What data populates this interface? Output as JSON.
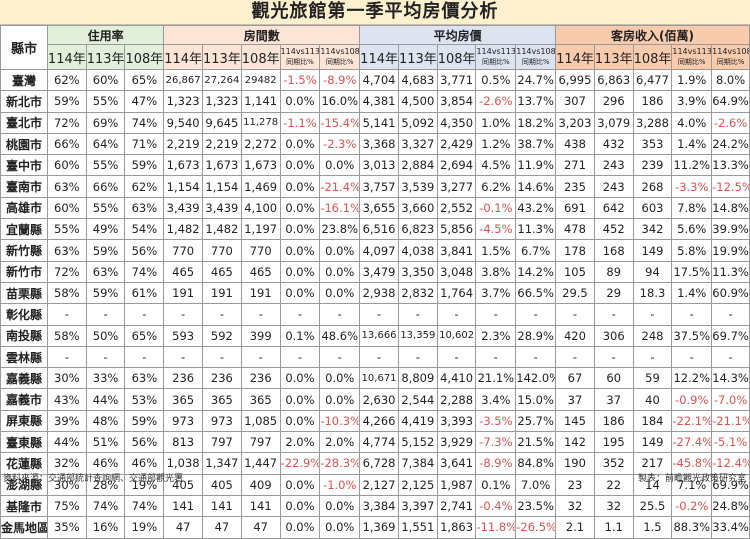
{
  "title": "觀光旅館第一季平均房價分析",
  "header": {
    "city_label": "縣市",
    "groups": [
      {
        "label": "住用率",
        "color": "#e2efda",
        "subs": [
          "114年",
          "113年",
          "108年"
        ]
      },
      {
        "label": "房間數",
        "color": "#fce4d6",
        "subs": [
          "114年",
          "113年",
          "108年",
          "114vs113\n同期比%",
          "114vs108\n同期比%"
        ]
      },
      {
        "label": "平均房價",
        "color": "#dde3f1",
        "subs": [
          "114年",
          "113年",
          "108年",
          "114vs113\n同期比%",
          "114vs108\n同期比%"
        ]
      },
      {
        "label": "客房收入(佰萬)",
        "color": "#f8cbad",
        "subs": [
          "114年",
          "113年",
          "108年",
          "114vs113\n同期比%",
          "114vs108\n同期比%"
        ]
      }
    ]
  },
  "rows": [
    {
      "city": "臺灣",
      "cells": [
        "62%",
        "60%",
        "65%",
        "26,867",
        "27,264",
        "29482",
        "-1.5%",
        "-8.9%",
        "4,704",
        "4,683",
        "3,771",
        "0.5%",
        "24.7%",
        "6,995",
        "6,863",
        "6,477",
        "1.9%",
        "8.0%"
      ]
    },
    {
      "city": "新北市",
      "cells": [
        "59%",
        "55%",
        "47%",
        "1,323",
        "1,323",
        "1,141",
        "0.0%",
        "16.0%",
        "4,381",
        "4,500",
        "3,854",
        "-2.6%",
        "13.7%",
        "307",
        "296",
        "186",
        "3.9%",
        "64.9%"
      ]
    },
    {
      "city": "臺北市",
      "cells": [
        "72%",
        "69%",
        "74%",
        "9,540",
        "9,645",
        "11,278",
        "-1.1%",
        "-15.4%",
        "5,141",
        "5,092",
        "4,350",
        "1.0%",
        "18.2%",
        "3,203",
        "3,079",
        "3,288",
        "4.0%",
        "-2.6%"
      ]
    },
    {
      "city": "桃園市",
      "cells": [
        "66%",
        "64%",
        "71%",
        "2,219",
        "2,219",
        "2,272",
        "0.0%",
        "-2.3%",
        "3,368",
        "3,327",
        "2,429",
        "1.2%",
        "38.7%",
        "438",
        "432",
        "353",
        "1.4%",
        "24.2%"
      ]
    },
    {
      "city": "臺中市",
      "cells": [
        "60%",
        "55%",
        "59%",
        "1,673",
        "1,673",
        "1,673",
        "0.0%",
        "0.0%",
        "3,013",
        "2,884",
        "2,694",
        "4.5%",
        "11.9%",
        "271",
        "243",
        "239",
        "11.2%",
        "13.3%"
      ]
    },
    {
      "city": "臺南市",
      "cells": [
        "63%",
        "66%",
        "62%",
        "1,154",
        "1,154",
        "1,469",
        "0.0%",
        "-21.4%",
        "3,757",
        "3,539",
        "3,277",
        "6.2%",
        "14.6%",
        "235",
        "243",
        "268",
        "-3.3%",
        "-12.5%"
      ]
    },
    {
      "city": "高雄市",
      "cells": [
        "60%",
        "55%",
        "63%",
        "3,439",
        "3,439",
        "4,100",
        "0.0%",
        "-16.1%",
        "3,655",
        "3,660",
        "2,552",
        "-0.1%",
        "43.2%",
        "691",
        "642",
        "603",
        "7.8%",
        "14.8%"
      ]
    },
    {
      "city": "宜蘭縣",
      "cells": [
        "55%",
        "49%",
        "54%",
        "1,482",
        "1,482",
        "1,197",
        "0.0%",
        "23.8%",
        "6,516",
        "6,823",
        "5,856",
        "-4.5%",
        "11.3%",
        "478",
        "452",
        "342",
        "5.6%",
        "39.9%"
      ]
    },
    {
      "city": "新竹縣",
      "cells": [
        "63%",
        "59%",
        "56%",
        "770",
        "770",
        "770",
        "0.0%",
        "0.0%",
        "4,097",
        "4,038",
        "3,841",
        "1.5%",
        "6.7%",
        "178",
        "168",
        "149",
        "5.8%",
        "19.9%"
      ]
    },
    {
      "city": "新竹市",
      "cells": [
        "72%",
        "63%",
        "74%",
        "465",
        "465",
        "465",
        "0.0%",
        "0.0%",
        "3,479",
        "3,350",
        "3,048",
        "3.8%",
        "14.2%",
        "105",
        "89",
        "94",
        "17.5%",
        "11.3%"
      ]
    },
    {
      "city": "苗栗縣",
      "cells": [
        "58%",
        "59%",
        "61%",
        "191",
        "191",
        "191",
        "0.0%",
        "0.0%",
        "2,938",
        "2,832",
        "1,764",
        "3.7%",
        "66.5%",
        "29.5",
        "29",
        "18.3",
        "1.4%",
        "60.9%"
      ]
    },
    {
      "city": "彰化縣",
      "cells": [
        "-",
        "-",
        "-",
        "-",
        "-",
        "-",
        "-",
        "-",
        "-",
        "-",
        "-",
        "-",
        "-",
        "-",
        "-",
        "-",
        "-",
        "-"
      ]
    },
    {
      "city": "南投縣",
      "cells": [
        "58%",
        "50%",
        "65%",
        "593",
        "592",
        "399",
        "0.1%",
        "48.6%",
        "13,666",
        "13,359",
        "10,602",
        "2.3%",
        "28.9%",
        "420",
        "306",
        "248",
        "37.5%",
        "69.7%"
      ]
    },
    {
      "city": "雲林縣",
      "cells": [
        "-",
        "-",
        "-",
        "-",
        "-",
        "-",
        "-",
        "-",
        "-",
        "-",
        "-",
        "-",
        "-",
        "-",
        "-",
        "-",
        "-",
        "-"
      ]
    },
    {
      "city": "嘉義縣",
      "cells": [
        "30%",
        "33%",
        "63%",
        "236",
        "236",
        "236",
        "0.0%",
        "0.0%",
        "10,671",
        "8,809",
        "4,410",
        "21.1%",
        "142.0%",
        "67",
        "60",
        "59",
        "12.2%",
        "14.3%"
      ]
    },
    {
      "city": "嘉義市",
      "cells": [
        "43%",
        "44%",
        "53%",
        "365",
        "365",
        "365",
        "0.0%",
        "0.0%",
        "2,630",
        "2,544",
        "2,288",
        "3.4%",
        "15.0%",
        "37",
        "37",
        "40",
        "-0.9%",
        "-7.0%"
      ]
    },
    {
      "city": "屏東縣",
      "cells": [
        "39%",
        "48%",
        "59%",
        "973",
        "973",
        "1,085",
        "0.0%",
        "-10.3%",
        "4,266",
        "4,419",
        "3,393",
        "-3.5%",
        "25.7%",
        "145",
        "186",
        "184",
        "-22.1%",
        "-21.1%"
      ]
    },
    {
      "city": "臺東縣",
      "cells": [
        "44%",
        "51%",
        "56%",
        "813",
        "797",
        "797",
        "2.0%",
        "2.0%",
        "4,774",
        "5,152",
        "3,929",
        "-7.3%",
        "21.5%",
        "142",
        "195",
        "149",
        "-27.4%",
        "-5.1%"
      ]
    },
    {
      "city": "花蓮縣",
      "cells": [
        "32%",
        "46%",
        "46%",
        "1,038",
        "1,347",
        "1,447",
        "-22.9%",
        "-28.3%",
        "6,728",
        "7,384",
        "3,641",
        "-8.9%",
        "84.8%",
        "190",
        "352",
        "217",
        "-45.8%",
        "-12.4%"
      ]
    },
    {
      "city": "澎湖縣",
      "cells": [
        "30%",
        "28%",
        "19%",
        "405",
        "405",
        "409",
        "0.0%",
        "-1.0%",
        "2,127",
        "2,125",
        "1,987",
        "0.1%",
        "7.0%",
        "23",
        "22",
        "14",
        "7.1%",
        "69.9%"
      ]
    },
    {
      "city": "基隆市",
      "cells": [
        "75%",
        "74%",
        "74%",
        "141",
        "141",
        "141",
        "0.0%",
        "0.0%",
        "3,384",
        "3,397",
        "2,741",
        "-0.4%",
        "23.5%",
        "32",
        "32",
        "25.5",
        "-0.2%",
        "24.8%"
      ]
    },
    {
      "city": "金馬地區",
      "cells": [
        "35%",
        "16%",
        "19%",
        "47",
        "47",
        "47",
        "0.0%",
        "0.0%",
        "1,369",
        "1,551",
        "1,863",
        "-11.8%",
        "-26.5%",
        "2.1",
        "1.1",
        "1.5",
        "88.3%",
        "33.4%"
      ]
    }
  ],
  "footer": {
    "source": "資料來源：交通部統計查詢網、交通部觀光署",
    "maker": "製表：前瞻觀光政策研究室"
  },
  "colors": {
    "title_bg": "#fdf0cf",
    "occupancy": "#e2efda",
    "rooms": "#fce4d6",
    "avg_price": "#dde3f1",
    "revenue": "#f8cbad",
    "negative": "#d9534f"
  }
}
